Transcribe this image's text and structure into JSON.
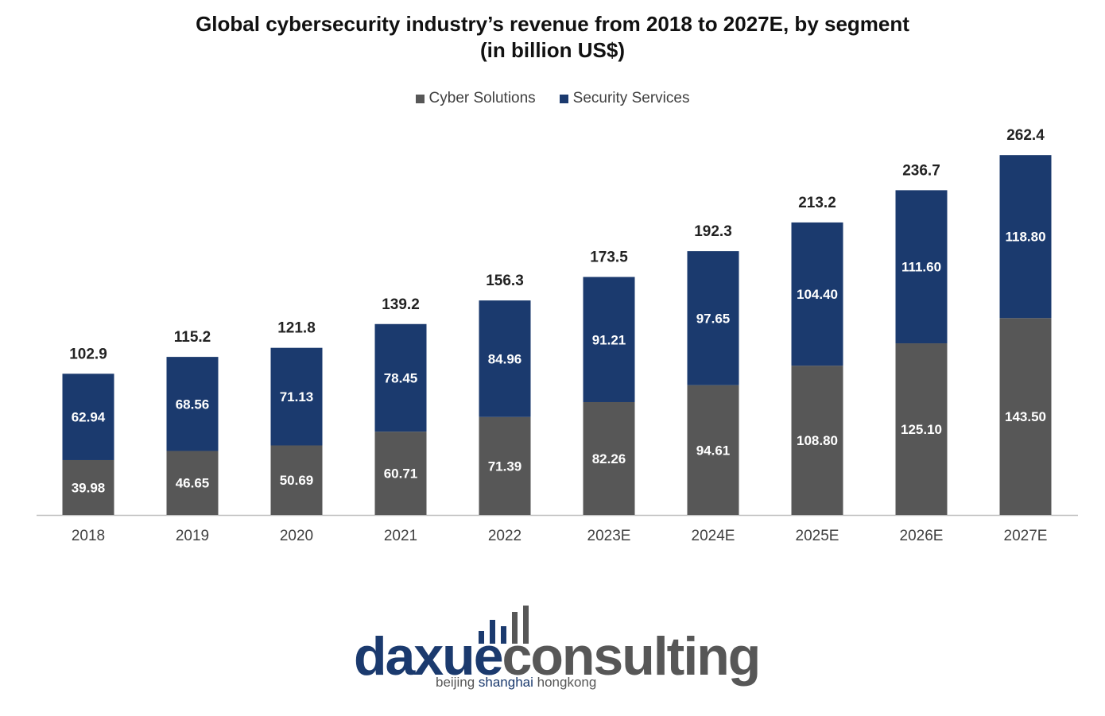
{
  "chart_data": {
    "type": "bar",
    "stacked": true,
    "title": [
      "Global cybersecurity industry’s revenue from 2018 to 2027E, by segment",
      "(in billion US$)"
    ],
    "categories": [
      "2018",
      "2019",
      "2020",
      "2021",
      "2022",
      "2023E",
      "2024E",
      "2025E",
      "2026E",
      "2027E"
    ],
    "series": [
      {
        "name": "Cyber Solutions",
        "color": "#575757",
        "values": [
          39.98,
          46.65,
          50.69,
          60.71,
          71.39,
          82.26,
          94.61,
          108.8,
          125.1,
          143.5
        ],
        "labels": [
          "39.98",
          "46.65",
          "50.69",
          "60.71",
          "71.39",
          "82.26",
          "94.61",
          "108.80",
          "125.10",
          "143.50"
        ]
      },
      {
        "name": "Security Services",
        "color": "#1b3a6e",
        "values": [
          62.94,
          68.56,
          71.13,
          78.45,
          84.96,
          91.21,
          97.65,
          104.4,
          111.6,
          118.8
        ],
        "labels": [
          "62.94",
          "68.56",
          "71.13",
          "78.45",
          "84.96",
          "91.21",
          "97.65",
          "104.40",
          "111.60",
          "118.80"
        ]
      }
    ],
    "totals": [
      102.9,
      115.2,
      121.8,
      139.2,
      156.3,
      173.5,
      192.3,
      213.2,
      236.7,
      262.4
    ],
    "total_labels": [
      "102.9",
      "115.2",
      "121.8",
      "139.2",
      "156.3",
      "173.5",
      "192.3",
      "213.2",
      "236.7",
      "262.4"
    ],
    "xlabel": "",
    "ylabel": "",
    "ylim": [
      0,
      262.4
    ],
    "grid": false,
    "legend_position": "top-center"
  },
  "branding": {
    "logo_text_part1": "daxue",
    "logo_text_part2": "consulting",
    "tagline_part1": "beijing",
    "tagline_part2": "shanghai",
    "tagline_part3": "hongkong",
    "colors": {
      "navy": "#1b3a6e",
      "gray": "#575757"
    }
  }
}
